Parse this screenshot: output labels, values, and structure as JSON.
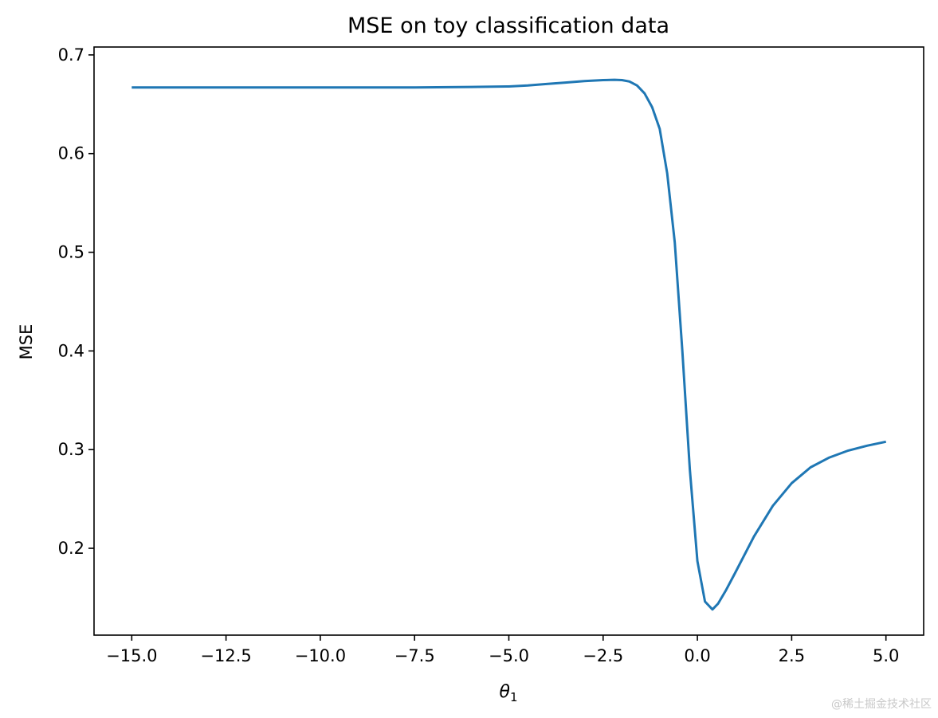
{
  "chart_data": {
    "type": "line",
    "title": "MSE on toy classification data",
    "xlabel": "θ",
    "xlabel_subscript": "1",
    "ylabel": "MSE",
    "xlim": [
      -16.0,
      6.0
    ],
    "ylim": [
      0.112,
      0.708
    ],
    "xticks": [
      -15.0,
      -12.5,
      -10.0,
      -7.5,
      -5.0,
      -2.5,
      0.0,
      2.5,
      5.0
    ],
    "xtick_labels": [
      "−15.0",
      "−12.5",
      "−10.0",
      "−7.5",
      "−5.0",
      "−2.5",
      "0.0",
      "2.5",
      "5.0"
    ],
    "yticks": [
      0.2,
      0.3,
      0.4,
      0.5,
      0.6,
      0.7
    ],
    "ytick_labels": [
      "0.2",
      "0.3",
      "0.4",
      "0.5",
      "0.6",
      "0.7"
    ],
    "grid": false,
    "color": "#1f77b4",
    "series": [
      {
        "x": [
          -15.0,
          -12.5,
          -10.0,
          -7.5,
          -6.0,
          -5.0,
          -4.5,
          -4.0,
          -3.5,
          -3.0,
          -2.5,
          -2.2,
          -2.0,
          -1.8,
          -1.6,
          -1.4,
          -1.2,
          -1.0,
          -0.8,
          -0.6,
          -0.4,
          -0.2,
          0.0,
          0.2,
          0.4,
          0.55,
          0.75,
          1.0,
          1.5,
          2.0,
          2.5,
          3.0,
          3.5,
          4.0,
          4.5,
          5.0
        ],
        "y": [
          0.667,
          0.667,
          0.667,
          0.667,
          0.6675,
          0.668,
          0.669,
          0.6705,
          0.672,
          0.6735,
          0.6745,
          0.6748,
          0.6745,
          0.673,
          0.669,
          0.661,
          0.647,
          0.625,
          0.58,
          0.51,
          0.4,
          0.28,
          0.187,
          0.146,
          0.138,
          0.144,
          0.157,
          0.175,
          0.212,
          0.243,
          0.266,
          0.282,
          0.292,
          0.299,
          0.304,
          0.308
        ]
      }
    ]
  },
  "watermark": "@稀土掘金技术社区"
}
